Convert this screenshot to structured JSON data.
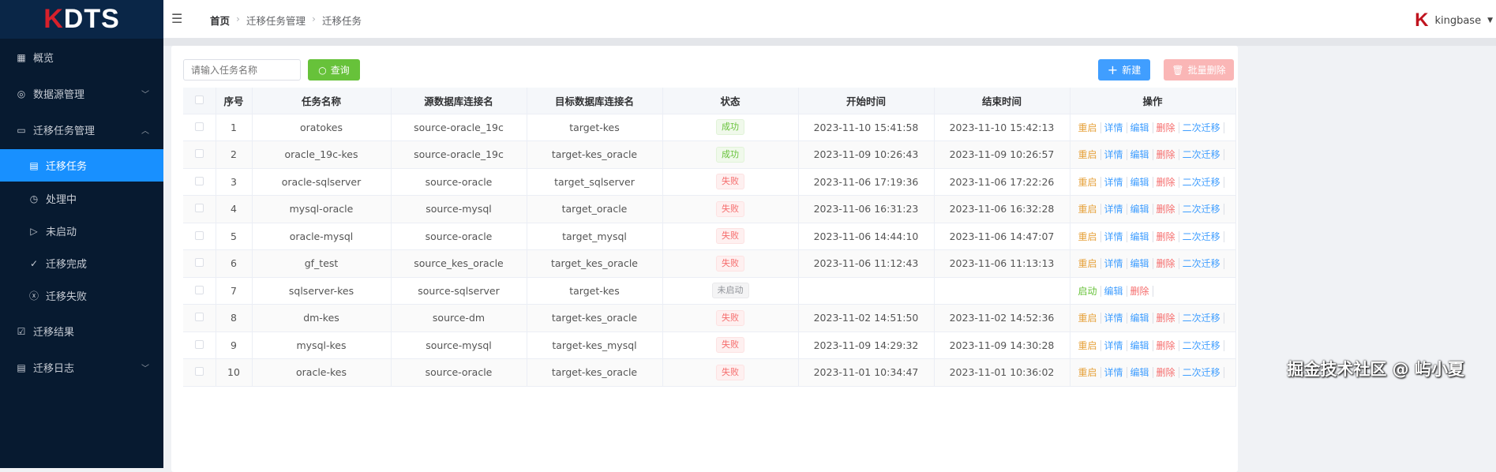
{
  "app": {
    "logo_k": "K",
    "logo_text": "DTS"
  },
  "sidebar": {
    "items": [
      {
        "label": "概览",
        "icon": "grid-icon",
        "level": "top",
        "chevron": ""
      },
      {
        "label": "数据源管理",
        "icon": "database-icon",
        "level": "top",
        "chevron": "down"
      },
      {
        "label": "迁移任务管理",
        "icon": "folder-icon",
        "level": "top",
        "chevron": "up"
      },
      {
        "label": "迁移任务",
        "icon": "document-icon",
        "level": "sub",
        "active": true
      },
      {
        "label": "处理中",
        "icon": "timer-icon",
        "level": "sub"
      },
      {
        "label": "未启动",
        "icon": "play-icon",
        "level": "sub"
      },
      {
        "label": "迁移完成",
        "icon": "check-list-icon",
        "level": "sub"
      },
      {
        "label": "迁移失败",
        "icon": "close-circle-icon",
        "level": "sub"
      },
      {
        "label": "迁移结果",
        "icon": "check-box-icon",
        "level": "top"
      },
      {
        "label": "迁移日志",
        "icon": "log-icon",
        "level": "top",
        "chevron": "down"
      }
    ]
  },
  "header": {
    "breadcrumb": [
      "首页",
      "迁移任务管理",
      "迁移任务"
    ],
    "user": "kingbase"
  },
  "toolbar": {
    "search_placeholder": "请输入任务名称",
    "query_label": "查询",
    "new_label": "新建",
    "batch_delete_label": "批量删除"
  },
  "table": {
    "columns": [
      "序号",
      "任务名称",
      "源数据库连接名",
      "目标数据库连接名",
      "状态",
      "开始时间",
      "结束时间",
      "操作"
    ],
    "rows": [
      {
        "no": "1",
        "name": "oratokes",
        "source": "source-oracle_19c",
        "target": "target-kes",
        "status": "成功",
        "status_type": "success",
        "start": "2023-11-10 15:41:58",
        "end": "2023-11-10 15:42:13",
        "ops": [
          "重启",
          "详情",
          "编辑",
          "删除",
          "二次迁移"
        ]
      },
      {
        "no": "2",
        "name": "oracle_19c-kes",
        "source": "source-oracle_19c",
        "target": "target-kes_oracle",
        "status": "成功",
        "status_type": "success",
        "start": "2023-11-09 10:26:43",
        "end": "2023-11-09 10:26:57",
        "ops": [
          "重启",
          "详情",
          "编辑",
          "删除",
          "二次迁移"
        ]
      },
      {
        "no": "3",
        "name": "oracle-sqlserver",
        "source": "source-oracle",
        "target": "target_sqlserver",
        "status": "失败",
        "status_type": "fail",
        "start": "2023-11-06 17:19:36",
        "end": "2023-11-06 17:22:26",
        "ops": [
          "重启",
          "详情",
          "编辑",
          "删除",
          "二次迁移"
        ]
      },
      {
        "no": "4",
        "name": "mysql-oracle",
        "source": "source-mysql",
        "target": "target_oracle",
        "status": "失败",
        "status_type": "fail",
        "start": "2023-11-06 16:31:23",
        "end": "2023-11-06 16:32:28",
        "ops": [
          "重启",
          "详情",
          "编辑",
          "删除",
          "二次迁移"
        ]
      },
      {
        "no": "5",
        "name": "oracle-mysql",
        "source": "source-oracle",
        "target": "target_mysql",
        "status": "失败",
        "status_type": "fail",
        "start": "2023-11-06 14:44:10",
        "end": "2023-11-06 14:47:07",
        "ops": [
          "重启",
          "详情",
          "编辑",
          "删除",
          "二次迁移"
        ]
      },
      {
        "no": "6",
        "name": "gf_test",
        "source": "source_kes_oracle",
        "target": "target_kes_oracle",
        "status": "失败",
        "status_type": "fail",
        "start": "2023-11-06 11:12:43",
        "end": "2023-11-06 11:13:13",
        "ops": [
          "重启",
          "详情",
          "编辑",
          "删除",
          "二次迁移"
        ]
      },
      {
        "no": "7",
        "name": "sqlserver-kes",
        "source": "source-sqlserver",
        "target": "target-kes",
        "status": "未启动",
        "status_type": "idle",
        "start": "",
        "end": "",
        "ops": [
          "启动",
          "编辑",
          "删除"
        ]
      },
      {
        "no": "8",
        "name": "dm-kes",
        "source": "source-dm",
        "target": "target-kes_oracle",
        "status": "失败",
        "status_type": "fail",
        "start": "2023-11-02 14:51:50",
        "end": "2023-11-02 14:52:36",
        "ops": [
          "重启",
          "详情",
          "编辑",
          "删除",
          "二次迁移"
        ]
      },
      {
        "no": "9",
        "name": "mysql-kes",
        "source": "source-mysql",
        "target": "target-kes_mysql",
        "status": "失败",
        "status_type": "fail",
        "start": "2023-11-09 14:29:32",
        "end": "2023-11-09 14:30:28",
        "ops": [
          "重启",
          "详情",
          "编辑",
          "删除",
          "二次迁移"
        ]
      },
      {
        "no": "10",
        "name": "oracle-kes",
        "source": "source-oracle",
        "target": "target-kes_oracle",
        "status": "失败",
        "status_type": "fail",
        "start": "2023-11-01 10:34:47",
        "end": "2023-11-01 10:36:02",
        "ops": [
          "重启",
          "详情",
          "编辑",
          "删除",
          "二次迁移"
        ]
      }
    ]
  },
  "colors": {
    "sidebar_bg": "#071a30",
    "active": "#1890ff",
    "success": "#67c23a",
    "danger": "#f56c6c",
    "warning": "#e6a23c",
    "primary": "#409eff"
  },
  "watermark": "掘金技术社区 @ 屿小夏"
}
